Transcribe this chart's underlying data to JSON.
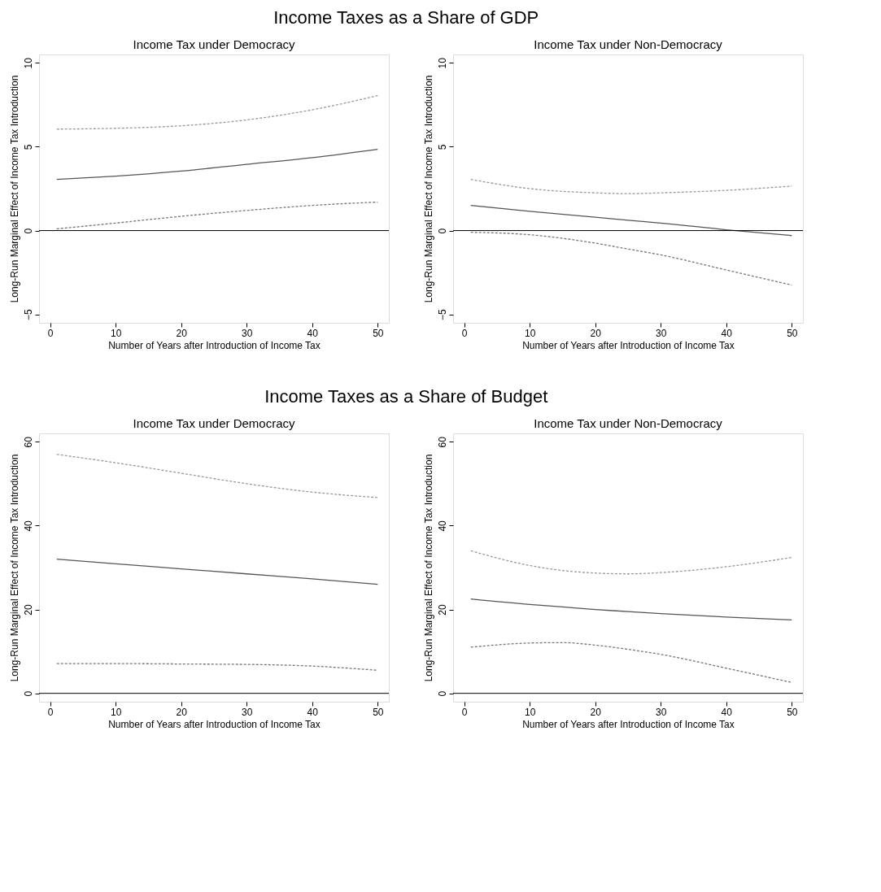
{
  "chart_data": [
    {
      "type": "line",
      "title": "Income Tax under Democracy",
      "annotations": [
        "Income Taxes as a Share of GDP"
      ],
      "xlabel": "Number of Years after Introduction of Income Tax",
      "ylabel": "Long-Run Marginal Effect of Income Tax Introduction",
      "xlim": [
        -1.7,
        51.7
      ],
      "ylim": [
        -5.5,
        10.5
      ],
      "xticks": [
        0,
        10,
        20,
        30,
        40,
        50
      ],
      "yticks": [
        -5,
        0,
        5,
        10
      ],
      "ref_lines": [
        {
          "axis": "y",
          "value": 0,
          "color": "#000000"
        }
      ],
      "x": [
        1,
        10,
        20,
        30,
        40,
        50
      ],
      "series": [
        {
          "color": "#555555",
          "line_style": "solid",
          "values": [
            3.05,
            3.25,
            3.55,
            3.95,
            4.35,
            4.85
          ]
        },
        {
          "color": "#999999",
          "line_style": "dashed",
          "values": [
            6.05,
            6.1,
            6.25,
            6.6,
            7.2,
            8.05
          ]
        },
        {
          "color": "#777777",
          "line_style": "dashed",
          "values": [
            0.1,
            0.45,
            0.85,
            1.2,
            1.5,
            1.7
          ]
        }
      ]
    },
    {
      "type": "line",
      "title": "Income Tax under Non-Democracy",
      "xlabel": "Number of Years after Introduction of Income Tax",
      "ylabel": "Long-Run Marginal Effect of Income Tax Introduction",
      "xlim": [
        -1.7,
        51.7
      ],
      "ylim": [
        -5.5,
        10.5
      ],
      "xticks": [
        0,
        10,
        20,
        30,
        40,
        50
      ],
      "yticks": [
        -5,
        0,
        5,
        10
      ],
      "ref_lines": [
        {
          "axis": "y",
          "value": 0,
          "color": "#000000"
        }
      ],
      "x": [
        1,
        10,
        20,
        25,
        30,
        40,
        50
      ],
      "series": [
        {
          "color": "#555555",
          "line_style": "solid",
          "values": [
            1.5,
            1.15,
            0.8,
            0.62,
            0.45,
            0.05,
            -0.3
          ]
        },
        {
          "color": "#999999",
          "line_style": "dashed",
          "values": [
            3.05,
            2.5,
            2.25,
            2.2,
            2.25,
            2.4,
            2.65
          ]
        },
        {
          "color": "#777777",
          "line_style": "dashed",
          "values": [
            -0.1,
            -0.25,
            -0.75,
            -1.1,
            -1.45,
            -2.35,
            -3.25
          ]
        }
      ]
    },
    {
      "type": "line",
      "title": "Income Tax under Democracy",
      "annotations": [
        "Income Taxes as a Share of Budget"
      ],
      "xlabel": "Number of Years after Introduction of Income Tax",
      "ylabel": "Long-Run Marginal Effect of Income Tax Introduction",
      "xlim": [
        -1.7,
        51.7
      ],
      "ylim": [
        -2,
        62
      ],
      "xticks": [
        0,
        10,
        20,
        30,
        40,
        50
      ],
      "yticks": [
        0,
        20,
        40,
        60
      ],
      "ref_lines": [
        {
          "axis": "y",
          "value": 0,
          "color": "#000000"
        }
      ],
      "x": [
        1,
        10,
        20,
        30,
        40,
        50
      ],
      "series": [
        {
          "color": "#555555",
          "line_style": "solid",
          "values": [
            32,
            30.9,
            29.7,
            28.5,
            27.3,
            26
          ]
        },
        {
          "color": "#999999",
          "line_style": "dashed",
          "values": [
            57,
            55,
            52.5,
            50,
            48,
            46.7
          ]
        },
        {
          "color": "#777777",
          "line_style": "dashed",
          "values": [
            7.1,
            7.1,
            7.0,
            6.9,
            6.5,
            5.5
          ]
        }
      ]
    },
    {
      "type": "line",
      "title": "Income Tax under Non-Democracy",
      "xlabel": "Number of Years after Introduction of Income Tax",
      "ylabel": "Long-Run Marginal Effect of Income Tax Introduction",
      "xlim": [
        -1.7,
        51.7
      ],
      "ylim": [
        -2,
        62
      ],
      "xticks": [
        0,
        10,
        20,
        30,
        40,
        50
      ],
      "yticks": [
        0,
        20,
        40,
        60
      ],
      "ref_lines": [
        {
          "axis": "y",
          "value": 0,
          "color": "#000000"
        }
      ],
      "x": [
        1,
        10,
        15,
        20,
        25,
        30,
        40,
        50
      ],
      "series": [
        {
          "color": "#555555",
          "line_style": "solid",
          "values": [
            22.5,
            21.2,
            20.6,
            20,
            19.5,
            19,
            18.2,
            17.5
          ]
        },
        {
          "color": "#999999",
          "line_style": "dashed",
          "values": [
            34,
            30.5,
            29.3,
            28.7,
            28.5,
            28.8,
            30.2,
            32.4
          ]
        },
        {
          "color": "#777777",
          "line_style": "dashed",
          "values": [
            11,
            12,
            12.1,
            11.5,
            10.5,
            9.3,
            6,
            2.6
          ]
        }
      ]
    }
  ]
}
